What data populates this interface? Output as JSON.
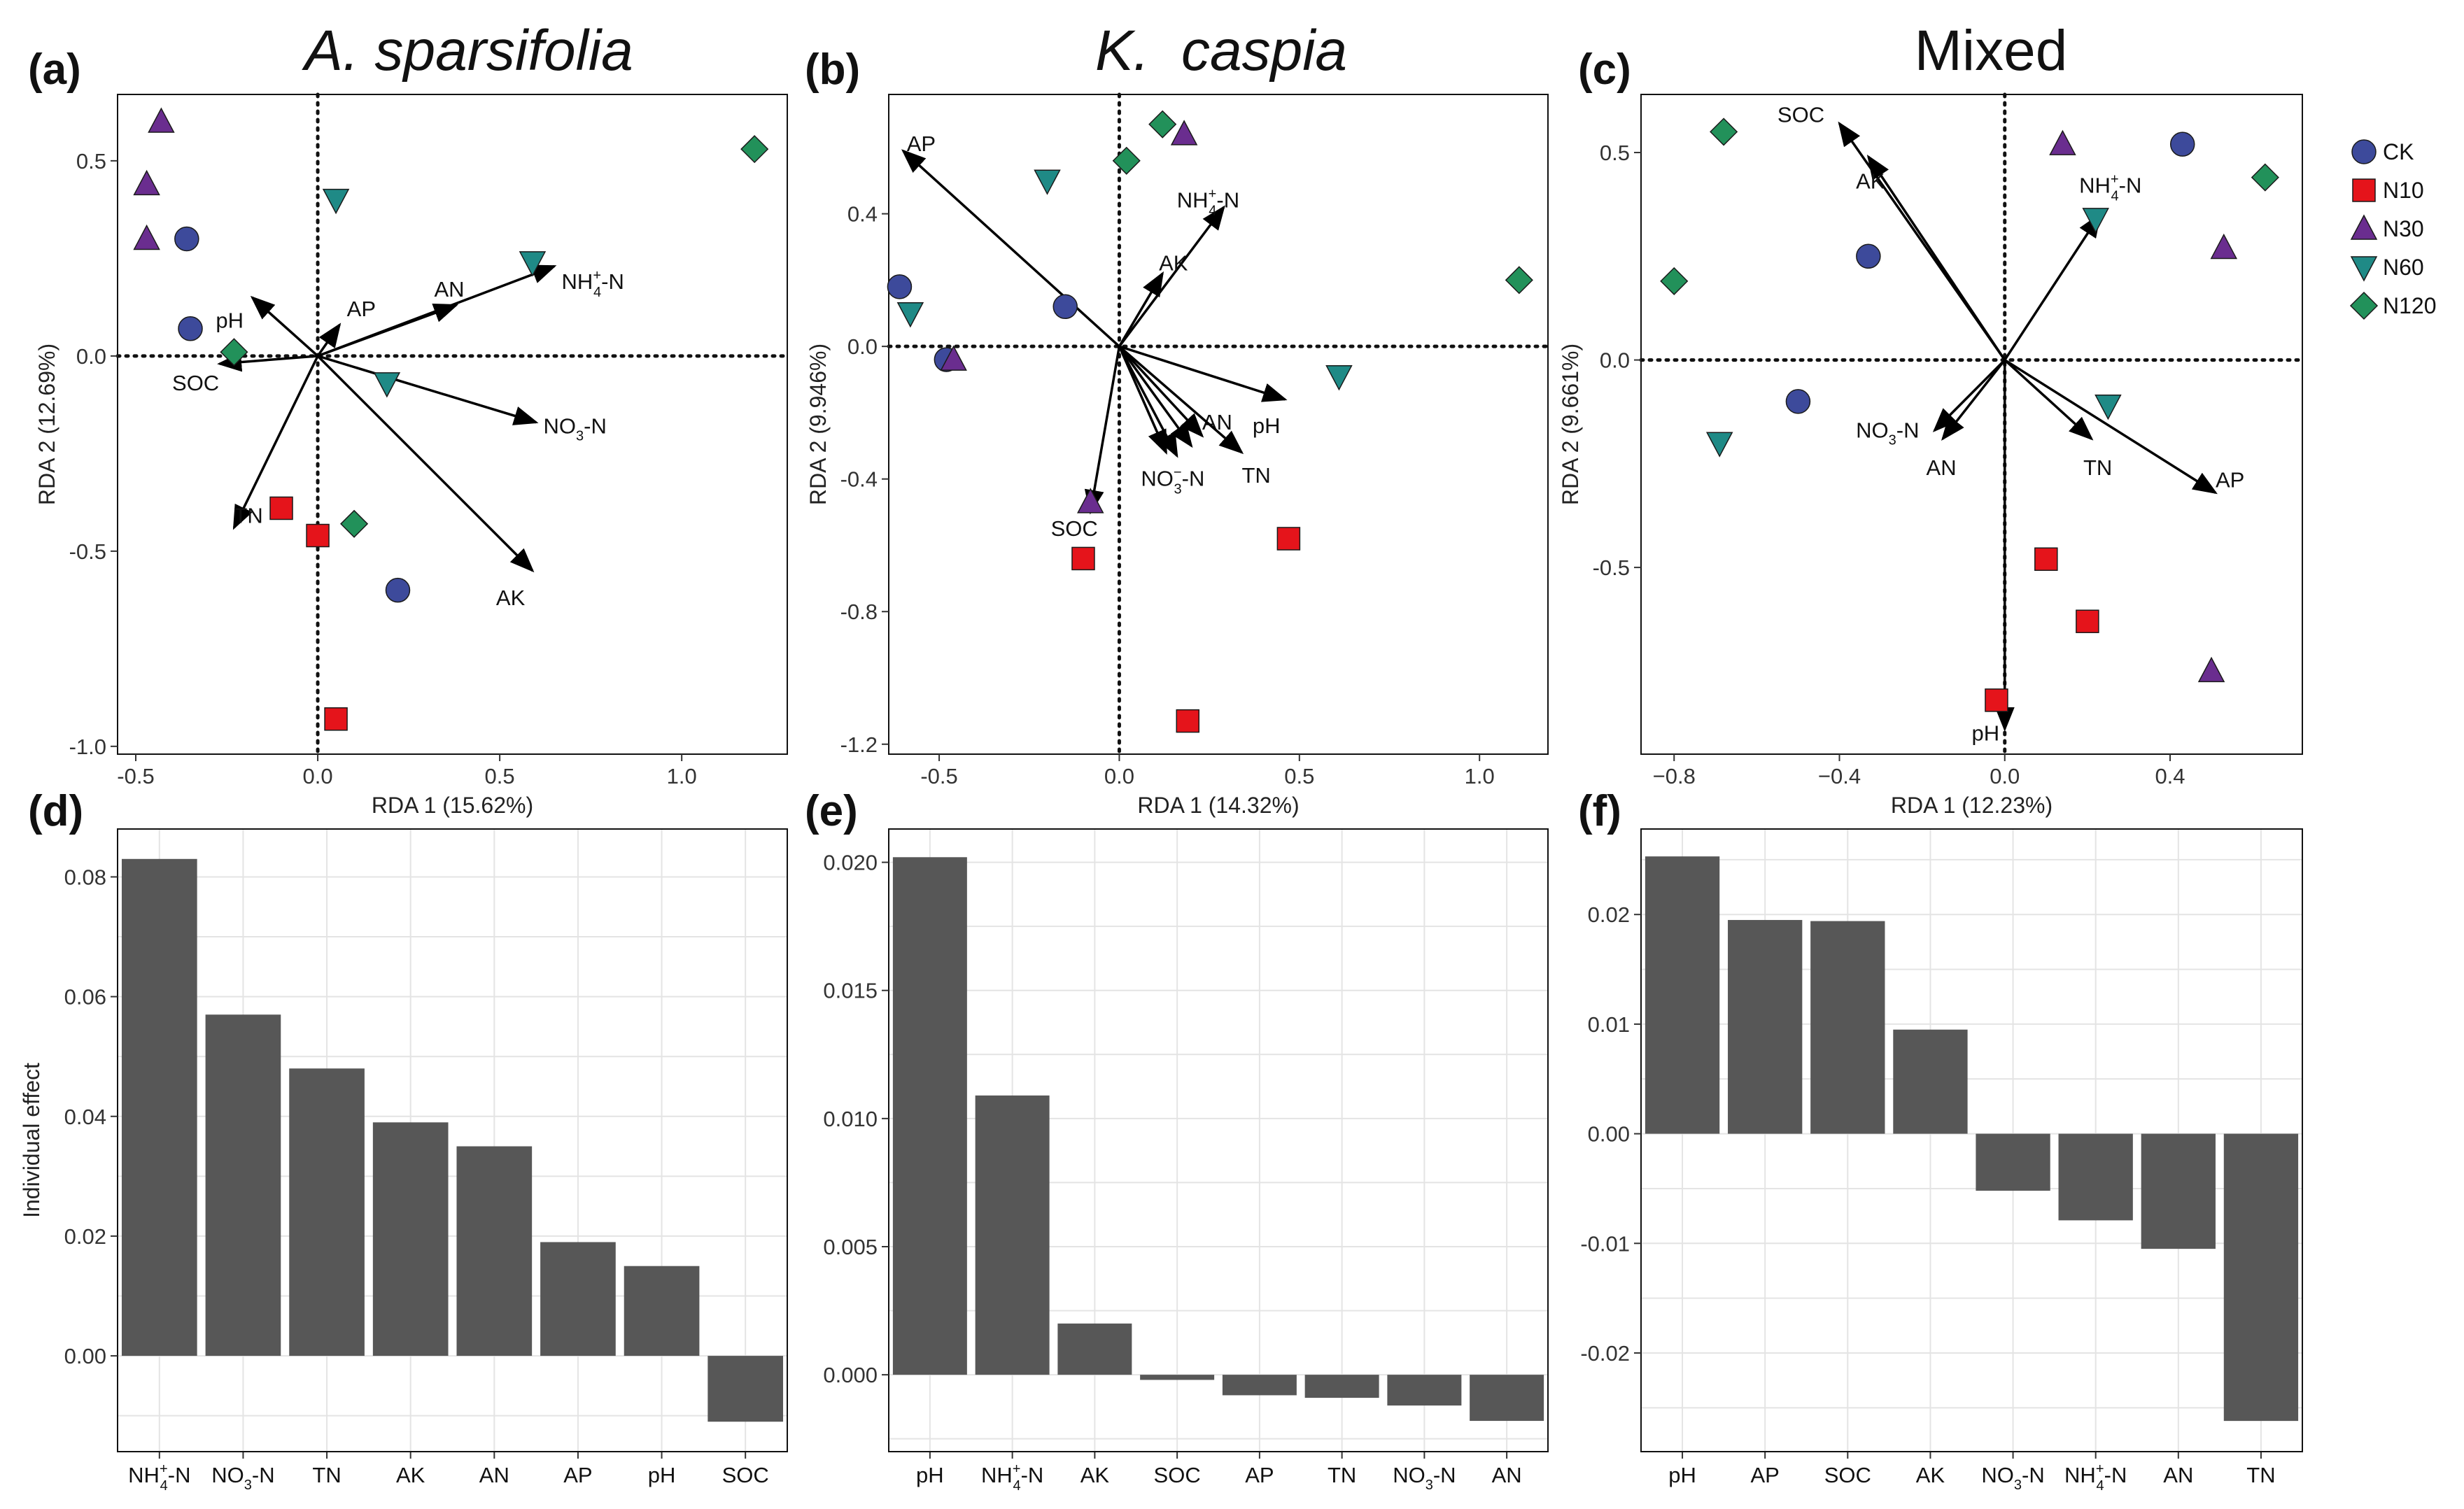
{
  "legend": [
    {
      "key": "CK",
      "label": "CK",
      "color": "#3d4a9b",
      "shape": "circle"
    },
    {
      "key": "N10",
      "label": "N10",
      "color": "#e5141b",
      "shape": "square"
    },
    {
      "key": "N30",
      "label": "N30",
      "color": "#6a2d8f",
      "shape": "triangle-up"
    },
    {
      "key": "N60",
      "label": "N60",
      "color": "#1f8a86",
      "shape": "triangle-down"
    },
    {
      "key": "N120",
      "label": "N120",
      "color": "#22915a",
      "shape": "diamond"
    }
  ],
  "chart_data": [
    {
      "panel": "(a)",
      "type": "scatter",
      "subtype": "rda-biplot",
      "title": "A. sparsifolia",
      "title_italic": true,
      "xlabel": "RDA 1 (15.62%)",
      "ylabel": "RDA 2 (12.69%)",
      "xlim": [
        -0.55,
        1.29
      ],
      "ylim": [
        -1.02,
        0.67
      ],
      "xticks": [
        -0.5,
        0.0,
        0.5,
        1.0
      ],
      "xtick_labels": [
        "-0.5",
        "0.0",
        "0.5",
        "1.0"
      ],
      "yticks": [
        -1.0,
        -0.5,
        0.0,
        0.5
      ],
      "ytick_labels": [
        "-1.0",
        "-0.5",
        "0.0",
        "0.5"
      ],
      "vectors": [
        {
          "id": "NH4",
          "label": "NH₄⁺-N",
          "label_parts": [
            "NH",
            "4",
            "+",
            "-N"
          ],
          "x": 0.65,
          "y": 0.23,
          "lx": 0.67,
          "ly": 0.19,
          "anchor": "start"
        },
        {
          "id": "AN",
          "label": "AN",
          "x": 0.38,
          "y": 0.13,
          "lx": 0.32,
          "ly": 0.17,
          "anchor": "start"
        },
        {
          "id": "AP",
          "label": "AP",
          "x": 0.06,
          "y": 0.08,
          "lx": 0.08,
          "ly": 0.12,
          "anchor": "start"
        },
        {
          "id": "pH",
          "label": "pH",
          "x": -0.18,
          "y": 0.15,
          "lx": -0.28,
          "ly": 0.09,
          "anchor": "start"
        },
        {
          "id": "SOC",
          "label": "SOC",
          "x": -0.27,
          "y": -0.02,
          "lx": -0.4,
          "ly": -0.07,
          "anchor": "start"
        },
        {
          "id": "NO3",
          "label": "NO₃-N",
          "label_parts": [
            "NO",
            "3",
            "",
            "-N"
          ],
          "x": 0.6,
          "y": -0.17,
          "lx": 0.62,
          "ly": -0.18,
          "anchor": "start"
        },
        {
          "id": "TN",
          "label": "TN",
          "x": -0.23,
          "y": -0.44,
          "lx": -0.23,
          "ly": -0.41,
          "anchor": "start"
        },
        {
          "id": "AK",
          "label": "AK",
          "x": 0.59,
          "y": -0.55,
          "lx": 0.49,
          "ly": -0.62,
          "anchor": "start"
        }
      ],
      "points": [
        {
          "group": "N30",
          "x": -0.43,
          "y": 0.6
        },
        {
          "group": "N30",
          "x": -0.47,
          "y": 0.44
        },
        {
          "group": "N30",
          "x": -0.47,
          "y": 0.3
        },
        {
          "group": "CK",
          "x": -0.36,
          "y": 0.3
        },
        {
          "group": "CK",
          "x": -0.35,
          "y": 0.07
        },
        {
          "group": "N120",
          "x": -0.23,
          "y": 0.01
        },
        {
          "group": "N60",
          "x": 0.05,
          "y": 0.4
        },
        {
          "group": "N60",
          "x": 0.59,
          "y": 0.24
        },
        {
          "group": "N120",
          "x": 1.2,
          "y": 0.53
        },
        {
          "group": "N60",
          "x": 0.19,
          "y": -0.07
        },
        {
          "group": "N10",
          "x": -0.1,
          "y": -0.39
        },
        {
          "group": "N10",
          "x": 0.0,
          "y": -0.46
        },
        {
          "group": "N120",
          "x": 0.1,
          "y": -0.43
        },
        {
          "group": "CK",
          "x": 0.22,
          "y": -0.6
        },
        {
          "group": "N10",
          "x": 0.05,
          "y": -0.93
        }
      ]
    },
    {
      "panel": "(b)",
      "type": "scatter",
      "subtype": "rda-biplot",
      "title": "K.  caspia",
      "title_italic": true,
      "xlabel": "RDA 1 (14.32%)",
      "ylabel": "RDA 2 (9.946%)",
      "xlim": [
        -0.64,
        1.19
      ],
      "ylim": [
        -1.23,
        0.76
      ],
      "xticks": [
        -0.5,
        0.0,
        0.5,
        1.0
      ],
      "xtick_labels": [
        "-0.5",
        "0.0",
        "0.5",
        "1.0"
      ],
      "yticks": [
        -1.2,
        -0.8,
        -0.4,
        0.0,
        0.4
      ],
      "ytick_labels": [
        "-1.2",
        "-0.8",
        "-0.4",
        "0.0",
        "0.4"
      ],
      "vectors": [
        {
          "id": "AP",
          "label": "AP",
          "x": -0.6,
          "y": 0.59,
          "lx": -0.59,
          "ly": 0.61,
          "anchor": "start"
        },
        {
          "id": "NH4",
          "label": "NH₄⁺-N",
          "label_parts": [
            "NH",
            "4",
            "+",
            "-N"
          ],
          "x": 0.29,
          "y": 0.42,
          "lx": 0.16,
          "ly": 0.44,
          "anchor": "start"
        },
        {
          "id": "AK",
          "label": "AK",
          "x": 0.12,
          "y": 0.22,
          "lx": 0.11,
          "ly": 0.25,
          "anchor": "start"
        },
        {
          "id": "SOC",
          "label": "SOC",
          "x": -0.08,
          "y": -0.5,
          "lx": -0.19,
          "ly": -0.55,
          "anchor": "start"
        },
        {
          "id": "pH",
          "label": "pH",
          "x": 0.46,
          "y": -0.16,
          "lx": 0.37,
          "ly": -0.24,
          "anchor": "start"
        },
        {
          "id": "AN",
          "label": "AN",
          "x": 0.23,
          "y": -0.27,
          "lx": 0.23,
          "ly": -0.23,
          "anchor": "start"
        },
        {
          "id": "TN",
          "label": "TN",
          "x": 0.34,
          "y": -0.32,
          "lx": 0.34,
          "ly": -0.39,
          "anchor": "start"
        },
        {
          "id": "NO3",
          "label": "NO₃⁻-N",
          "label_parts": [
            "NO",
            "3",
            "−",
            "-N"
          ],
          "x": 0.16,
          "y": -0.33,
          "lx": 0.06,
          "ly": -0.4,
          "anchor": "start"
        },
        {
          "id": "vx1",
          "label": "",
          "x": 0.2,
          "y": -0.3
        },
        {
          "id": "vx2",
          "label": "",
          "x": 0.13,
          "y": -0.32
        }
      ],
      "points": [
        {
          "group": "N120",
          "x": 0.12,
          "y": 0.67
        },
        {
          "group": "N30",
          "x": 0.18,
          "y": 0.64
        },
        {
          "group": "N120",
          "x": 0.02,
          "y": 0.56
        },
        {
          "group": "N60",
          "x": -0.2,
          "y": 0.5
        },
        {
          "group": "CK",
          "x": -0.61,
          "y": 0.18
        },
        {
          "group": "N60",
          "x": -0.58,
          "y": 0.1
        },
        {
          "group": "CK",
          "x": -0.15,
          "y": 0.12
        },
        {
          "group": "N120",
          "x": 1.11,
          "y": 0.2
        },
        {
          "group": "CK",
          "x": -0.48,
          "y": -0.04
        },
        {
          "group": "N30",
          "x": -0.46,
          "y": -0.04
        },
        {
          "group": "N60",
          "x": 0.61,
          "y": -0.09
        },
        {
          "group": "N30",
          "x": -0.08,
          "y": -0.47
        },
        {
          "group": "N10",
          "x": -0.1,
          "y": -0.64
        },
        {
          "group": "N10",
          "x": 0.47,
          "y": -0.58
        },
        {
          "group": "N10",
          "x": 0.19,
          "y": -1.13
        }
      ]
    },
    {
      "panel": "(c)",
      "type": "scatter",
      "subtype": "rda-biplot",
      "title": "Mixed",
      "title_italic": false,
      "xlabel": "RDA 1 (12.23%)",
      "ylabel": "RDA 2 (9.661%)",
      "xlim": [
        -0.88,
        0.72
      ],
      "ylim": [
        -0.95,
        0.64
      ],
      "xticks": [
        -0.8,
        -0.4,
        0.0,
        0.4
      ],
      "xtick_labels": [
        "−0.8",
        "−0.4",
        "0.0",
        "0.4"
      ],
      "yticks": [
        -0.5,
        0.0,
        0.5
      ],
      "ytick_labels": [
        "-0.5",
        "0.0",
        "0.5"
      ],
      "vectors": [
        {
          "id": "SOC",
          "label": "SOC",
          "x": -0.4,
          "y": 0.57,
          "lx": -0.55,
          "ly": 0.59,
          "anchor": "start"
        },
        {
          "id": "AK",
          "label": "AK",
          "x": -0.33,
          "y": 0.49,
          "lx": -0.36,
          "ly": 0.43,
          "anchor": "start"
        },
        {
          "id": "NH4",
          "label": "NH₄⁺-N",
          "label_parts": [
            "NH",
            "4",
            "+",
            "-N"
          ],
          "x": 0.23,
          "y": 0.35,
          "lx": 0.18,
          "ly": 0.42,
          "anchor": "start"
        },
        {
          "id": "AP",
          "label": "AP",
          "x": 0.51,
          "y": -0.32,
          "lx": 0.51,
          "ly": -0.29,
          "anchor": "start"
        },
        {
          "id": "TN",
          "label": "TN",
          "x": 0.21,
          "y": -0.19,
          "lx": 0.19,
          "ly": -0.26,
          "anchor": "start"
        },
        {
          "id": "AN",
          "label": "AN",
          "x": -0.15,
          "y": -0.19,
          "lx": -0.19,
          "ly": -0.26,
          "anchor": "start"
        },
        {
          "id": "NO3",
          "label": "NO₃-N",
          "label_parts": [
            "NO",
            "3",
            "",
            "-N"
          ],
          "x": -0.17,
          "y": -0.17,
          "lx": -0.36,
          "ly": -0.17,
          "anchor": "start"
        },
        {
          "id": "pH",
          "label": "pH",
          "x": 0.0,
          "y": -0.89,
          "lx": -0.08,
          "ly": -0.9,
          "anchor": "start"
        }
      ],
      "points": [
        {
          "group": "N120",
          "x": -0.68,
          "y": 0.55
        },
        {
          "group": "N120",
          "x": -0.8,
          "y": 0.19
        },
        {
          "group": "CK",
          "x": -0.33,
          "y": 0.25
        },
        {
          "group": "N30",
          "x": 0.14,
          "y": 0.52
        },
        {
          "group": "CK",
          "x": 0.43,
          "y": 0.52
        },
        {
          "group": "N120",
          "x": 0.63,
          "y": 0.44
        },
        {
          "group": "N60",
          "x": 0.22,
          "y": 0.34
        },
        {
          "group": "N30",
          "x": 0.53,
          "y": 0.27
        },
        {
          "group": "CK",
          "x": -0.5,
          "y": -0.1
        },
        {
          "group": "N60",
          "x": -0.69,
          "y": -0.2
        },
        {
          "group": "N60",
          "x": 0.25,
          "y": -0.11
        },
        {
          "group": "N10",
          "x": 0.1,
          "y": -0.48
        },
        {
          "group": "N10",
          "x": 0.2,
          "y": -0.63
        },
        {
          "group": "N30",
          "x": 0.5,
          "y": -0.75
        },
        {
          "group": "N10",
          "x": -0.02,
          "y": -0.82
        }
      ]
    },
    {
      "panel": "(d)",
      "type": "bar",
      "ylabel": "Individual effect",
      "xlabel": "",
      "categories": [
        "NH4+-N",
        "NO3-N",
        "TN",
        "AK",
        "AN",
        "AP",
        "pH",
        "SOC"
      ],
      "category_parts": [
        [
          "NH",
          "4",
          "+",
          "-N"
        ],
        [
          "NO",
          "3",
          "",
          "-N"
        ],
        [
          "TN"
        ],
        [
          "AK"
        ],
        [
          "AN"
        ],
        [
          "AP"
        ],
        [
          "pH"
        ],
        [
          "SOC"
        ]
      ],
      "values": [
        0.083,
        0.057,
        0.048,
        0.039,
        0.035,
        0.019,
        0.015,
        -0.011
      ],
      "ylim": [
        -0.016,
        0.088
      ],
      "yticks": [
        0.0,
        0.02,
        0.04,
        0.06,
        0.08
      ],
      "ytick_labels": [
        "0.00",
        "0.02",
        "0.04",
        "0.06",
        "0.08"
      ]
    },
    {
      "panel": "(e)",
      "type": "bar",
      "ylabel": "",
      "xlabel": "",
      "categories": [
        "pH",
        "NH4+-N",
        "AK",
        "SOC",
        "AP",
        "TN",
        "NO3-N",
        "AN"
      ],
      "category_parts": [
        [
          "pH"
        ],
        [
          "NH",
          "4",
          "+",
          "-N"
        ],
        [
          "AK"
        ],
        [
          "SOC"
        ],
        [
          "AP"
        ],
        [
          "TN"
        ],
        [
          "NO",
          "3",
          "",
          "-N"
        ],
        [
          "AN"
        ]
      ],
      "values": [
        0.0202,
        0.0109,
        0.002,
        -0.0002,
        -0.0008,
        -0.0009,
        -0.0012,
        -0.0018
      ],
      "ylim": [
        -0.003,
        0.0213
      ],
      "yticks": [
        0.0,
        0.005,
        0.01,
        0.015,
        0.02
      ],
      "ytick_labels": [
        "0.000",
        "0.005",
        "0.010",
        "0.015",
        "0.020"
      ]
    },
    {
      "panel": "(f)",
      "type": "bar",
      "ylabel": "",
      "xlabel": "",
      "categories": [
        "pH",
        "AP",
        "SOC",
        "AK",
        "NO3-N",
        "NH4+-N",
        "AN",
        "TN"
      ],
      "category_parts": [
        [
          "pH"
        ],
        [
          "AP"
        ],
        [
          "SOC"
        ],
        [
          "AK"
        ],
        [
          "NO",
          "3",
          "",
          "-N"
        ],
        [
          "NH",
          "4",
          "+",
          "-N"
        ],
        [
          "AN"
        ],
        [
          "TN"
        ]
      ],
      "values": [
        0.0253,
        0.0195,
        0.0194,
        0.0095,
        -0.0052,
        -0.0079,
        -0.0105,
        -0.0262
      ],
      "ylim": [
        -0.029,
        0.0278
      ],
      "yticks": [
        -0.02,
        -0.01,
        0.0,
        0.01,
        0.02
      ],
      "ytick_labels": [
        "-0.02",
        "-0.01",
        "0.00",
        "0.01",
        "0.02"
      ]
    }
  ]
}
